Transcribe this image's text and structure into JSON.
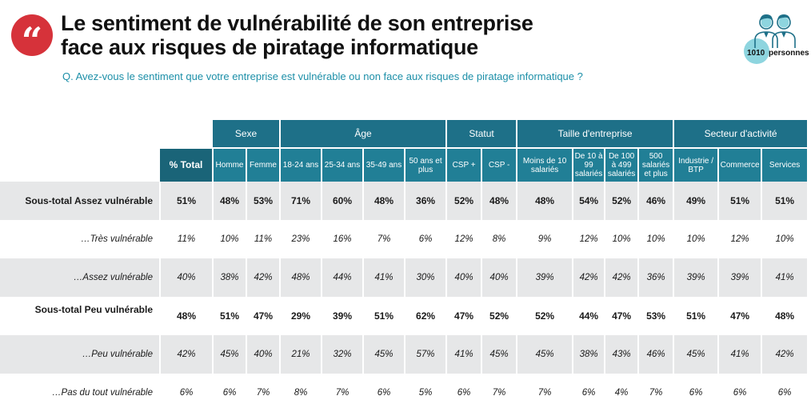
{
  "header": {
    "quote_glyph": "“",
    "title_line1": "Le sentiment de vulnérabilité de son entreprise",
    "title_line2": "face aux risques de piratage informatique",
    "question": "Q. Avez-vous le sentiment que votre entreprise est vulnérable ou non face aux risques de piratage informatique ?",
    "sample_count": "1010",
    "sample_unit": "personnes",
    "sample_icon": "people-icon"
  },
  "colors": {
    "badge_red": "#d6323a",
    "header_teal": "#1e7088",
    "subtitle_teal": "#1c8fa8",
    "row_shade": "#e6e7e8"
  },
  "groups": [
    "Sexe",
    "Âge",
    "Statut",
    "Taille d'entreprise",
    "Secteur d'activité"
  ],
  "columns": [
    {
      "label": "% Total"
    },
    {
      "label": "Homme"
    },
    {
      "label": "Femme"
    },
    {
      "label": "18-24 ans"
    },
    {
      "label": "25-34 ans"
    },
    {
      "label": "35-49 ans"
    },
    {
      "label": "50 ans et plus"
    },
    {
      "label": "CSP +"
    },
    {
      "label": "CSP -"
    },
    {
      "label": "Moins de 10 salariés"
    },
    {
      "label": "De 10 à 99 salariés"
    },
    {
      "label": "De 100 à 499 salariés"
    },
    {
      "label": "500 salariés et plus"
    },
    {
      "label": "Industrie / BTP"
    },
    {
      "label": "Commerce"
    },
    {
      "label": "Services"
    }
  ],
  "rows": [
    {
      "label": "Sous-total Assez vulnérable",
      "values": [
        "51%",
        "48%",
        "53%",
        "71%",
        "60%",
        "48%",
        "36%",
        "52%",
        "48%",
        "48%",
        "54%",
        "52%",
        "46%",
        "49%",
        "51%",
        "51%"
      ]
    },
    {
      "label": "…Très vulnérable",
      "values": [
        "11%",
        "10%",
        "11%",
        "23%",
        "16%",
        "7%",
        "6%",
        "12%",
        "8%",
        "9%",
        "12%",
        "10%",
        "10%",
        "10%",
        "12%",
        "10%"
      ]
    },
    {
      "label": "…Assez vulnérable",
      "values": [
        "40%",
        "38%",
        "42%",
        "48%",
        "44%",
        "41%",
        "30%",
        "40%",
        "40%",
        "39%",
        "42%",
        "42%",
        "36%",
        "39%",
        "39%",
        "41%"
      ]
    },
    {
      "label": "Sous-total Peu vulnérable",
      "values": [
        "48%",
        "51%",
        "47%",
        "29%",
        "39%",
        "51%",
        "62%",
        "47%",
        "52%",
        "52%",
        "44%",
        "47%",
        "53%",
        "51%",
        "47%",
        "48%"
      ]
    },
    {
      "label": "…Peu vulnérable",
      "values": [
        "42%",
        "45%",
        "40%",
        "21%",
        "32%",
        "45%",
        "57%",
        "41%",
        "45%",
        "45%",
        "38%",
        "43%",
        "46%",
        "45%",
        "41%",
        "42%"
      ]
    },
    {
      "label": "…Pas du tout vulnérable",
      "values": [
        "6%",
        "6%",
        "7%",
        "8%",
        "7%",
        "6%",
        "5%",
        "6%",
        "7%",
        "7%",
        "6%",
        "4%",
        "7%",
        "6%",
        "6%",
        "6%"
      ]
    }
  ]
}
